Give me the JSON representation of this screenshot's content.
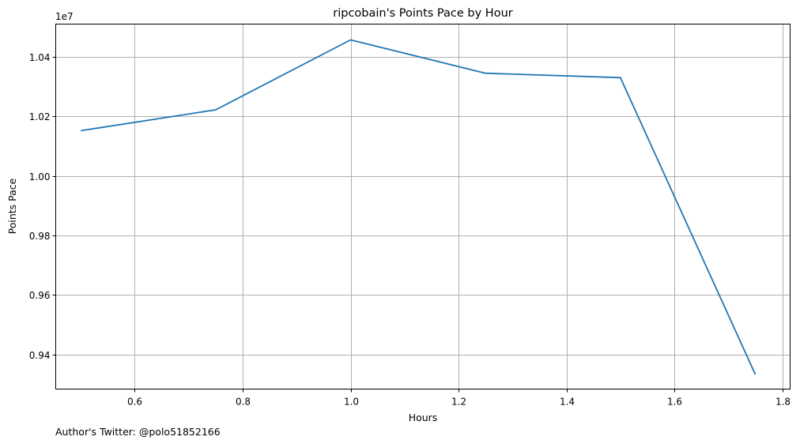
{
  "chart_data": {
    "type": "line",
    "title": "ripcobain's Points Pace by Hour",
    "xlabel": "Hours",
    "ylabel": "Points Pace",
    "y_offset_label": "1e7",
    "footnote": "Author's Twitter: @polo51852166",
    "x": [
      0.5,
      0.75,
      1.0,
      1.25,
      1.5,
      1.75
    ],
    "series": [
      {
        "values": [
          10152000,
          10222000,
          10457000,
          10345000,
          10330000,
          9333000
        ]
      }
    ],
    "xlim": [
      0.4535,
      1.8145
    ],
    "ylim": [
      9284000,
      10510000
    ],
    "xticks": [
      0.6,
      0.8,
      1.0,
      1.2,
      1.4,
      1.6,
      1.8
    ],
    "xtick_labels": [
      "0.6",
      "0.8",
      "1.0",
      "1.2",
      "1.4",
      "1.6",
      "1.8"
    ],
    "yticks": [
      9400000,
      9600000,
      9800000,
      10000000,
      10200000,
      10400000
    ],
    "ytick_labels": [
      "0.94",
      "0.96",
      "0.98",
      "1.00",
      "1.02",
      "1.04"
    ],
    "grid": true,
    "line_color": "#1f77b4"
  }
}
